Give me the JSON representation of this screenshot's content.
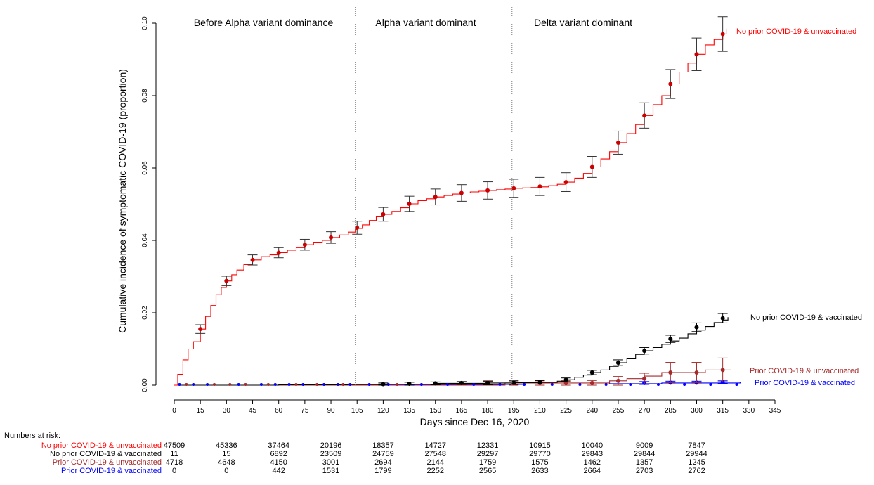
{
  "chart_data": {
    "type": "line",
    "xlabel": "Days since Dec 16, 2020",
    "ylabel": "Cumulative incidence of symptomatic COVID-19 (proportion)",
    "xlim": [
      0,
      345
    ],
    "ylim": [
      0,
      0.1
    ],
    "xticks": [
      0,
      15,
      30,
      45,
      60,
      75,
      90,
      105,
      120,
      135,
      150,
      165,
      180,
      195,
      210,
      225,
      240,
      255,
      270,
      285,
      300,
      315,
      330,
      345
    ],
    "yticks": [
      "0.00",
      "0.02",
      "0.04",
      "0.06",
      "0.08",
      "0.10"
    ],
    "grid": false,
    "periods": [
      {
        "label": "Before Alpha variant dominance",
        "start": 0,
        "end": 104
      },
      {
        "label": "Alpha variant dominant",
        "start": 104,
        "end": 194
      },
      {
        "label": "Delta variant dominant",
        "start": 194,
        "end": 345
      }
    ],
    "dividers": [
      104,
      194
    ],
    "series": [
      {
        "name": "No prior COVID-19 & unvaccinated",
        "color": "#ff0000",
        "x": [
          0,
          2,
          5,
          8,
          11,
          15,
          18,
          21,
          24,
          27,
          30,
          33,
          36,
          40,
          45,
          50,
          55,
          60,
          65,
          70,
          75,
          80,
          85,
          90,
          95,
          100,
          104,
          108,
          112,
          116,
          120,
          125,
          130,
          135,
          140,
          145,
          150,
          155,
          160,
          165,
          170,
          175,
          180,
          185,
          190,
          195,
          200,
          205,
          210,
          215,
          220,
          225,
          230,
          235,
          240,
          245,
          250,
          255,
          260,
          265,
          270,
          275,
          280,
          285,
          290,
          295,
          300,
          305,
          310,
          315,
          317
        ],
        "y": [
          0,
          0.003,
          0.007,
          0.01,
          0.012,
          0.0155,
          0.019,
          0.022,
          0.025,
          0.027,
          0.0288,
          0.0305,
          0.0318,
          0.0333,
          0.0346,
          0.0355,
          0.036,
          0.0366,
          0.0373,
          0.038,
          0.0388,
          0.0395,
          0.04,
          0.0408,
          0.0415,
          0.0423,
          0.0433,
          0.0443,
          0.0455,
          0.0465,
          0.0472,
          0.048,
          0.049,
          0.0501,
          0.051,
          0.0515,
          0.052,
          0.0524,
          0.0528,
          0.0531,
          0.0534,
          0.0536,
          0.0538,
          0.054,
          0.0542,
          0.0544,
          0.0545,
          0.0546,
          0.0548,
          0.0551,
          0.0555,
          0.0561,
          0.0572,
          0.0585,
          0.0603,
          0.0625,
          0.0645,
          0.067,
          0.0695,
          0.072,
          0.0745,
          0.0775,
          0.08,
          0.0832,
          0.0865,
          0.089,
          0.0914,
          0.094,
          0.0955,
          0.097,
          0.0985
        ]
      },
      {
        "name": "No prior COVID-19 & vaccinated",
        "color": "#000000",
        "x": [
          0,
          60,
          100,
          120,
          150,
          180,
          195,
          210,
          220,
          225,
          230,
          235,
          240,
          245,
          250,
          255,
          260,
          265,
          270,
          275,
          280,
          285,
          290,
          295,
          300,
          305,
          310,
          315,
          318
        ],
        "y": [
          0,
          0.0001,
          0.0002,
          0.0003,
          0.0005,
          0.0006,
          0.0007,
          0.0008,
          0.0011,
          0.0015,
          0.0022,
          0.0028,
          0.0035,
          0.0042,
          0.0052,
          0.0062,
          0.0073,
          0.0085,
          0.0095,
          0.0104,
          0.0113,
          0.0122,
          0.013,
          0.0142,
          0.0152,
          0.0162,
          0.0173,
          0.018,
          0.0188
        ]
      },
      {
        "name": "Prior COVID-19 & unvaccinated",
        "color": "#a52a2a",
        "x": [
          0,
          150,
          190,
          230,
          250,
          260,
          270,
          280,
          300,
          305,
          320
        ],
        "y": [
          0,
          0,
          0.0006,
          0.0006,
          0.0012,
          0.0018,
          0.0025,
          0.0035,
          0.0035,
          0.0042,
          0.0042
        ]
      },
      {
        "name": "Prior COVID-19 & vaccinated",
        "color": "#0000ff",
        "x": [
          0,
          100,
          150,
          200,
          250,
          280,
          325
        ],
        "y": [
          0,
          0.0001,
          0.0002,
          0.0003,
          0.0004,
          0.0006,
          0.0008
        ]
      }
    ],
    "markers": [
      {
        "series": 0,
        "x": [
          15,
          30,
          45,
          60,
          75,
          90,
          105,
          120,
          135,
          150,
          165,
          180,
          195,
          210,
          225,
          240,
          255,
          270,
          285,
          300,
          315
        ],
        "y": [
          0.0155,
          0.0288,
          0.0346,
          0.0366,
          0.0388,
          0.0408,
          0.0435,
          0.0472,
          0.0501,
          0.052,
          0.0531,
          0.0538,
          0.0544,
          0.0549,
          0.0561,
          0.0603,
          0.067,
          0.0745,
          0.0832,
          0.0914,
          0.097
        ],
        "err": [
          0.0012,
          0.0013,
          0.0014,
          0.0014,
          0.0015,
          0.0016,
          0.0018,
          0.0019,
          0.0021,
          0.0022,
          0.0023,
          0.0024,
          0.0025,
          0.0025,
          0.0026,
          0.0029,
          0.0032,
          0.0035,
          0.004,
          0.0045,
          0.0048
        ]
      },
      {
        "series": 1,
        "x": [
          120,
          135,
          150,
          165,
          180,
          195,
          210,
          225,
          240,
          255,
          270,
          285,
          300,
          315
        ],
        "y": [
          0.0003,
          0.0004,
          0.0005,
          0.0006,
          0.0006,
          0.0007,
          0.0008,
          0.0015,
          0.0035,
          0.0062,
          0.0095,
          0.0128,
          0.016,
          0.0185
        ],
        "err": [
          0.0003,
          0.0004,
          0.0004,
          0.0004,
          0.0005,
          0.0005,
          0.0005,
          0.0005,
          0.0006,
          0.0008,
          0.0009,
          0.001,
          0.0012,
          0.0013
        ]
      },
      {
        "series": 2,
        "x": [
          180,
          195,
          210,
          225,
          240,
          255,
          270,
          285,
          300,
          315
        ],
        "y": [
          0.0006,
          0.0006,
          0.0006,
          0.0006,
          0.0006,
          0.0012,
          0.0018,
          0.0035,
          0.0035,
          0.0042
        ],
        "err": [
          0.0006,
          0.0006,
          0.0006,
          0.0007,
          0.0007,
          0.0012,
          0.0015,
          0.0028,
          0.0028,
          0.0033
        ]
      },
      {
        "series": 3,
        "x": [
          270,
          285,
          300,
          315
        ],
        "y": [
          0.0006,
          0.0007,
          0.0007,
          0.0008
        ],
        "err": [
          0.0004,
          0.0004,
          0.0004,
          0.0004
        ]
      }
    ],
    "small_points": {
      "x": [
        3,
        7,
        11,
        19,
        23,
        32,
        37,
        41,
        50,
        54,
        58,
        66,
        70,
        74,
        82,
        86,
        94,
        97,
        101,
        112,
        123,
        128,
        142,
        157,
        172,
        187,
        201,
        217,
        233,
        248,
        262,
        278,
        293,
        308,
        323
      ],
      "colors": [
        "#0000ff",
        "#a52a2a",
        "#0000ff",
        "#0000ff",
        "#a52a2a",
        "#a52a2a",
        "#0000ff",
        "#a52a2a",
        "#0000ff",
        "#a52a2a",
        "#0000ff",
        "#0000ff",
        "#a52a2a",
        "#0000ff",
        "#a52a2a",
        "#0000ff",
        "#0000ff",
        "#a52a2a",
        "#0000ff",
        "#0000ff",
        "#0000ff",
        "#a52a2a",
        "#0000ff",
        "#0000ff",
        "#0000ff",
        "#0000ff",
        "#0000ff",
        "#0000ff",
        "#0000ff",
        "#0000ff",
        "#0000ff",
        "#0000ff",
        "#0000ff",
        "#0000ff",
        "#0000ff"
      ]
    }
  },
  "numbers_at_risk": {
    "title": "Numbers at risk:",
    "x": [
      0,
      30,
      60,
      90,
      120,
      150,
      180,
      210,
      240,
      270,
      300
    ],
    "rows": [
      {
        "label": "No prior COVID-19 & unvaccinated",
        "color": "#ff0000",
        "values": [
          "47509",
          "45336",
          "37464",
          "20196",
          "18357",
          "14727",
          "12331",
          "10915",
          "10040",
          "9009",
          "7847"
        ]
      },
      {
        "label": "No prior COVID-19 & vaccinated",
        "color": "#000000",
        "values": [
          "11",
          "15",
          "6892",
          "23509",
          "24759",
          "27548",
          "29297",
          "29770",
          "29843",
          "29844",
          "29944"
        ]
      },
      {
        "label": "Prior COVID-19 & unvaccinated",
        "color": "#a52a2a",
        "values": [
          "4718",
          "4648",
          "4150",
          "3001",
          "2694",
          "2144",
          "1759",
          "1575",
          "1462",
          "1357",
          "1245"
        ]
      },
      {
        "label": "Prior COVID-19 & vaccinated",
        "color": "#0000ff",
        "values": [
          "0",
          "0",
          "442",
          "1531",
          "1799",
          "2252",
          "2565",
          "2633",
          "2664",
          "2703",
          "2762"
        ]
      }
    ]
  }
}
